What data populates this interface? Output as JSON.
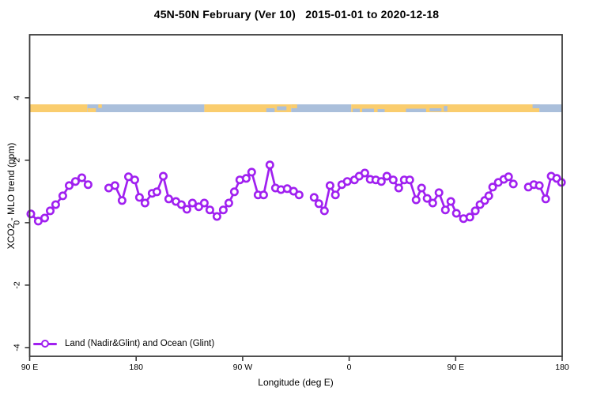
{
  "title": "45N-50N February (Ver 10)   2015-01-01 to 2020-12-18",
  "colors": {
    "accent_purple": "#A020F0",
    "land_orange": "#FACD6E",
    "ocean_blue": "#AABFDB",
    "frame": "#3c3c3c",
    "text": "#000000",
    "marker_fill": "#ffffff"
  },
  "legend": {
    "label": "Land (Nadir&Glint) and Ocean (Glint)"
  },
  "chart_data": {
    "type": "line",
    "title": "45N-50N February (Ver 10)   2015-01-01 to 2020-12-18",
    "xlabel": "Longitude (deg E)",
    "ylabel": "XCO2 - MLO trend (ppm)",
    "xlim": [
      90,
      540
    ],
    "ylim": [
      -4.28,
      6.02
    ],
    "grid": false,
    "legend_position": "bottom-left",
    "x_ticks": [
      {
        "pos": 90,
        "label": "90 E"
      },
      {
        "pos": 180,
        "label": "180"
      },
      {
        "pos": 270,
        "label": "90 W"
      },
      {
        "pos": 360,
        "label": "0"
      },
      {
        "pos": 450,
        "label": "90 E"
      },
      {
        "pos": 540,
        "label": "180"
      }
    ],
    "y_ticks": [
      {
        "pos": -4,
        "label": "-4"
      },
      {
        "pos": -2,
        "label": "-2"
      },
      {
        "pos": 0,
        "label": "0"
      },
      {
        "pos": 2,
        "label": "2"
      },
      {
        "pos": 4,
        "label": "4"
      }
    ],
    "surface_band": {
      "y_top": 3.79,
      "y_bottom": 3.54,
      "segments": [
        {
          "from": 90.0,
          "to": 138.7,
          "type": "land"
        },
        {
          "from": 138.7,
          "to": 237.6,
          "type": "ocean"
        },
        {
          "from": 237.6,
          "to": 311.0,
          "type": "land"
        },
        {
          "from": 311.0,
          "to": 361.8,
          "type": "ocean"
        },
        {
          "from": 361.8,
          "to": 520.7,
          "type": "land"
        },
        {
          "from": 520.7,
          "to": 540.0,
          "type": "ocean"
        }
      ],
      "patches": [
        {
          "from": 139,
          "to": 146,
          "type": "land",
          "frac": [
            0.5,
            1
          ]
        },
        {
          "from": 148,
          "to": 151,
          "type": "land",
          "frac": [
            0,
            0.45
          ]
        },
        {
          "from": 290,
          "to": 297,
          "type": "ocean",
          "frac": [
            0.5,
            1
          ]
        },
        {
          "from": 299,
          "to": 307,
          "type": "ocean",
          "frac": [
            0.25,
            0.75
          ]
        },
        {
          "from": 311,
          "to": 316,
          "type": "land",
          "frac": [
            0,
            0.5
          ]
        },
        {
          "from": 363,
          "to": 369,
          "type": "ocean",
          "frac": [
            0.55,
            1
          ]
        },
        {
          "from": 371,
          "to": 381,
          "type": "ocean",
          "frac": [
            0.55,
            1
          ]
        },
        {
          "from": 384,
          "to": 390,
          "type": "ocean",
          "frac": [
            0.6,
            1
          ]
        },
        {
          "from": 408,
          "to": 425,
          "type": "ocean",
          "frac": [
            0.55,
            1
          ]
        },
        {
          "from": 428,
          "to": 438,
          "type": "ocean",
          "frac": [
            0.5,
            0.9
          ]
        },
        {
          "from": 440,
          "to": 443,
          "type": "ocean",
          "frac": [
            0.2,
            0.9
          ]
        },
        {
          "from": 515,
          "to": 521,
          "type": "ocean",
          "frac": [
            0,
            0.5
          ]
        }
      ]
    },
    "series": [
      {
        "name": "Land (Nadir&Glint) and Ocean (Glint)",
        "color": "#A020F0",
        "marker": "open-circle",
        "segments": [
          [
            [
              91,
              0.28
            ],
            [
              97.3,
              0.05
            ],
            [
              102.7,
              0.15
            ],
            [
              107.4,
              0.38
            ],
            [
              112,
              0.58
            ],
            [
              118,
              0.86
            ],
            [
              123.4,
              1.19
            ],
            [
              128.7,
              1.32
            ],
            [
              134.1,
              1.44
            ],
            [
              139.4,
              1.22
            ]
          ],
          [
            [
              156.8,
              1.11
            ],
            [
              162.1,
              1.19
            ],
            [
              168.1,
              0.71
            ],
            [
              173.5,
              1.47
            ],
            [
              178.8,
              1.37
            ],
            [
              182.8,
              0.81
            ],
            [
              187.5,
              0.63
            ],
            [
              193.5,
              0.94
            ],
            [
              197.5,
              0.99
            ],
            [
              202.9,
              1.49
            ],
            [
              207.5,
              0.76
            ],
            [
              213.6,
              0.68
            ],
            [
              218.2,
              0.58
            ],
            [
              222.9,
              0.43
            ],
            [
              227.6,
              0.63
            ],
            [
              232.9,
              0.51
            ],
            [
              237.6,
              0.63
            ],
            [
              242.3,
              0.41
            ],
            [
              248.3,
              0.2
            ],
            [
              253.6,
              0.41
            ],
            [
              258.3,
              0.63
            ],
            [
              263,
              0.99
            ],
            [
              267.6,
              1.37
            ],
            [
              273,
              1.42
            ],
            [
              277.6,
              1.62
            ],
            [
              283,
              0.89
            ],
            [
              287.7,
              0.89
            ],
            [
              293,
              1.85
            ],
            [
              297.7,
              1.11
            ],
            [
              302.4,
              1.06
            ],
            [
              307.7,
              1.09
            ],
            [
              313,
              1.01
            ],
            [
              317.7,
              0.89
            ]
          ],
          [
            [
              330.4,
              0.81
            ],
            [
              334.4,
              0.61
            ],
            [
              339.1,
              0.38
            ],
            [
              343.8,
              1.19
            ],
            [
              348.4,
              0.89
            ],
            [
              353.8,
              1.22
            ],
            [
              358.4,
              1.32
            ],
            [
              364.5,
              1.37
            ],
            [
              368.5,
              1.49
            ],
            [
              373.2,
              1.59
            ],
            [
              377.8,
              1.39
            ],
            [
              382.5,
              1.37
            ],
            [
              387.2,
              1.32
            ],
            [
              391.9,
              1.49
            ],
            [
              397.2,
              1.37
            ],
            [
              401.9,
              1.11
            ],
            [
              406.6,
              1.37
            ],
            [
              411.2,
              1.37
            ],
            [
              416.6,
              0.73
            ],
            [
              421.2,
              1.11
            ],
            [
              425.9,
              0.78
            ],
            [
              430.6,
              0.63
            ],
            [
              435.9,
              0.96
            ],
            [
              441.3,
              0.41
            ],
            [
              445.9,
              0.68
            ],
            [
              450.6,
              0.3
            ],
            [
              456.6,
              0.13
            ],
            [
              462,
              0.18
            ],
            [
              466.6,
              0.38
            ],
            [
              470.6,
              0.58
            ],
            [
              474.6,
              0.71
            ],
            [
              478,
              0.86
            ],
            [
              481.3,
              1.14
            ],
            [
              486,
              1.29
            ],
            [
              490.7,
              1.39
            ],
            [
              494.7,
              1.47
            ],
            [
              498.7,
              1.24
            ]
          ],
          [
            [
              511.4,
              1.14
            ],
            [
              516.1,
              1.22
            ],
            [
              520.7,
              1.19
            ],
            [
              526.1,
              0.76
            ],
            [
              530.7,
              1.49
            ],
            [
              535.4,
              1.42
            ],
            [
              539.4,
              1.29
            ]
          ]
        ]
      }
    ]
  }
}
